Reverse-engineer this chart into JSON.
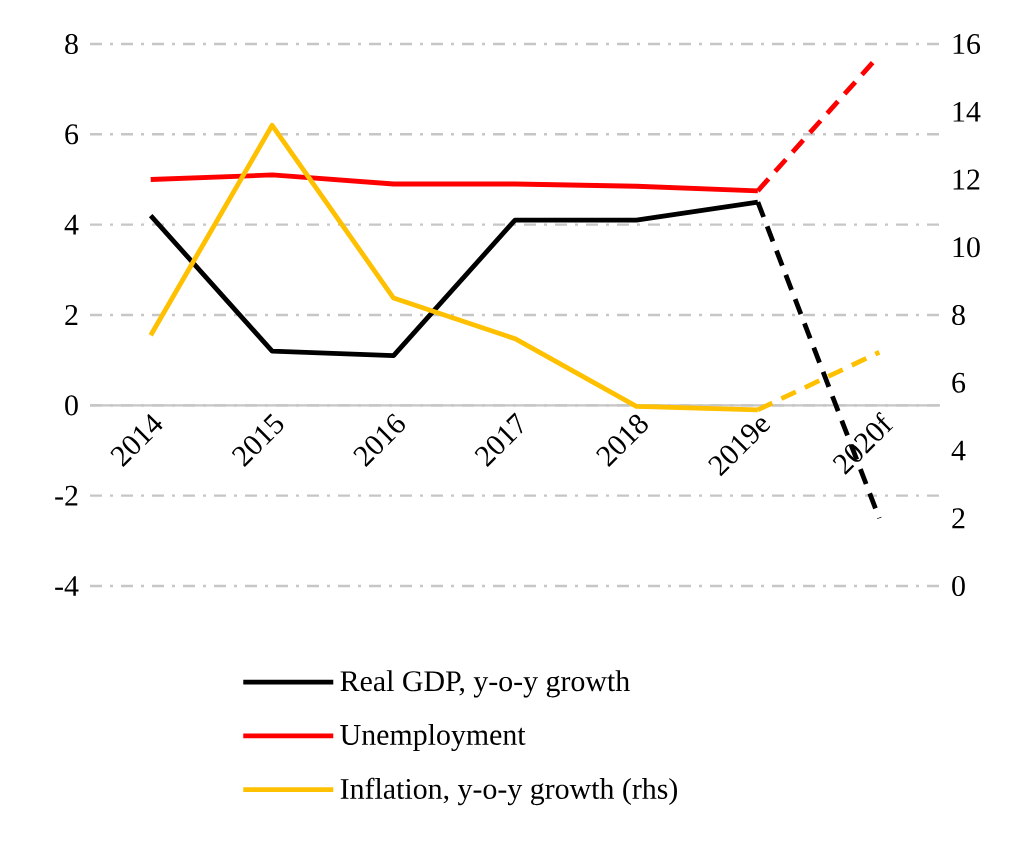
{
  "chart_data": {
    "type": "line",
    "categories": [
      "2014",
      "2015",
      "2016",
      "2017",
      "2018",
      "2019e",
      "2020f"
    ],
    "series": [
      {
        "name": "Real GDP, y-o-y growth",
        "color": "#000000",
        "line_style": "solid",
        "values": [
          4.2,
          1.2,
          1.1,
          4.1,
          4.1,
          4.5,
          null
        ]
      },
      {
        "color": "#000000",
        "line_style": "dashed",
        "values": [
          null,
          null,
          null,
          null,
          null,
          4.5,
          -2.5
        ]
      },
      {
        "name": "Unemployment",
        "color": "#ff0000",
        "line_style": "solid",
        "values": [
          5.0,
          5.1,
          4.9,
          4.9,
          4.85,
          4.75,
          null
        ]
      },
      {
        "color": "#ff0000",
        "line_style": "dashed",
        "values": [
          null,
          null,
          null,
          null,
          null,
          4.75,
          7.75
        ]
      },
      {
        "name": "Inflation, y-o-y growth (rhs)",
        "color": "#ffc000",
        "line_style": "solid",
        "axis": "y2",
        "values": [
          7.4,
          13.6,
          8.5,
          7.3,
          5.3,
          5.2,
          null
        ]
      },
      {
        "color": "#ffc000",
        "line_style": "dashed",
        "axis": "y2",
        "values": [
          null,
          null,
          null,
          null,
          null,
          5.2,
          6.9
        ]
      }
    ],
    "ylim": [
      -4,
      8
    ],
    "yticks": [
      -4,
      -2,
      0,
      2,
      4,
      6,
      8
    ],
    "y2lim": [
      0,
      16
    ],
    "y2ticks": [
      0,
      2,
      4,
      6,
      8,
      10,
      12,
      14,
      16
    ],
    "grid": "y",
    "legend": "bottom",
    "marker": "none"
  }
}
